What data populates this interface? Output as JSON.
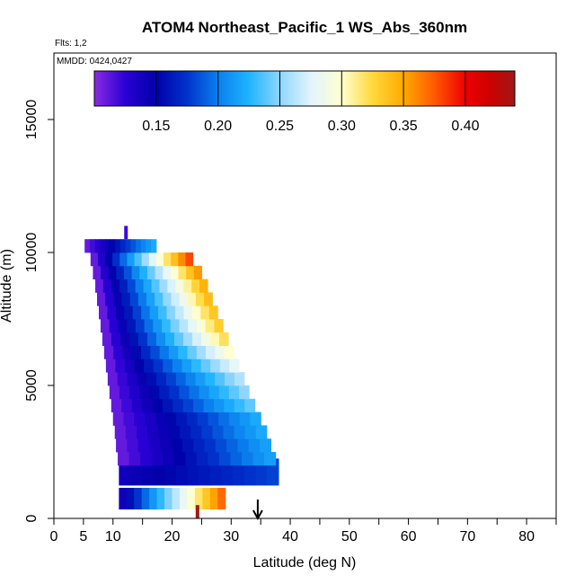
{
  "chart_data": {
    "type": "heatmap",
    "title": "ATOM4 Northeast_Pacific_1 WS_Abs_360nm",
    "flights_label": "Flts: 1,2",
    "dates_label": "MMDD: 0424,0427",
    "xlabel": "Latitude (deg N)",
    "ylabel": "Altitude (m)",
    "xlim": [
      0,
      85
    ],
    "ylim": [
      0,
      17500
    ],
    "x_ticks": [
      0,
      5,
      10,
      20,
      30,
      40,
      50,
      60,
      70,
      80
    ],
    "x_minor_ticks": [
      15,
      25,
      35,
      45,
      55,
      65,
      75,
      85
    ],
    "y_ticks": [
      0,
      5000,
      10000,
      15000
    ],
    "colorbar": {
      "min": 0.1,
      "max": 0.44,
      "ticks": [
        0.15,
        0.2,
        0.25,
        0.3,
        0.35,
        0.4
      ],
      "tick_labels": [
        "0.15",
        "0.20",
        "0.25",
        "0.30",
        "0.35",
        "0.40"
      ],
      "stops": [
        {
          "v": 0.1,
          "c": "#8a2be2"
        },
        {
          "v": 0.125,
          "c": "#2a00d5"
        },
        {
          "v": 0.15,
          "c": "#0000aa"
        },
        {
          "v": 0.175,
          "c": "#0033cc"
        },
        {
          "v": 0.2,
          "c": "#0a7fee"
        },
        {
          "v": 0.225,
          "c": "#1eb4ff"
        },
        {
          "v": 0.25,
          "c": "#8ed6ff"
        },
        {
          "v": 0.275,
          "c": "#e2f4ff"
        },
        {
          "v": 0.3,
          "c": "#ffffd0"
        },
        {
          "v": 0.325,
          "c": "#ffd83c"
        },
        {
          "v": 0.35,
          "c": "#ffaa00"
        },
        {
          "v": 0.375,
          "c": "#ff5a00"
        },
        {
          "v": 0.4,
          "c": "#ee0000"
        },
        {
          "v": 0.42,
          "c": "#cc0000"
        },
        {
          "v": 0.44,
          "c": "#a01818"
        }
      ]
    },
    "bins": [
      {
        "alt": 750,
        "half": 400,
        "lat0": 11.0,
        "lat1": 29.0,
        "vmin": 0.14,
        "vmax": 0.37
      },
      {
        "alt": 1750,
        "half": 500,
        "lat0": 11.0,
        "lat1": 38.0,
        "vmin": 0.14,
        "vmax": 0.18
      },
      {
        "alt": 2250,
        "half": 250,
        "lat0": 10.8,
        "lat1": 37.5,
        "vmin": 0.11,
        "vmax": 0.215
      },
      {
        "alt": 2750,
        "half": 250,
        "lat0": 10.5,
        "lat1": 36.7,
        "vmin": 0.11,
        "vmax": 0.215
      },
      {
        "alt": 3250,
        "half": 250,
        "lat0": 10.3,
        "lat1": 36.0,
        "vmin": 0.11,
        "vmax": 0.22
      },
      {
        "alt": 3750,
        "half": 250,
        "lat0": 10.0,
        "lat1": 35.0,
        "vmin": 0.11,
        "vmax": 0.22
      },
      {
        "alt": 4250,
        "half": 250,
        "lat0": 9.7,
        "lat1": 34.0,
        "vmin": 0.11,
        "vmax": 0.24
      },
      {
        "alt": 4750,
        "half": 250,
        "lat0": 9.4,
        "lat1": 33.0,
        "vmin": 0.11,
        "vmax": 0.25
      },
      {
        "alt": 5250,
        "half": 250,
        "lat0": 9.1,
        "lat1": 32.2,
        "vmin": 0.11,
        "vmax": 0.26
      },
      {
        "alt": 5750,
        "half": 250,
        "lat0": 8.8,
        "lat1": 31.3,
        "vmin": 0.11,
        "vmax": 0.28
      },
      {
        "alt": 6250,
        "half": 250,
        "lat0": 8.5,
        "lat1": 30.4,
        "vmin": 0.11,
        "vmax": 0.3
      },
      {
        "alt": 6750,
        "half": 250,
        "lat0": 8.2,
        "lat1": 29.5,
        "vmin": 0.11,
        "vmax": 0.32
      },
      {
        "alt": 7250,
        "half": 250,
        "lat0": 7.9,
        "lat1": 28.6,
        "vmin": 0.11,
        "vmax": 0.33
      },
      {
        "alt": 7750,
        "half": 250,
        "lat0": 7.6,
        "lat1": 27.7,
        "vmin": 0.11,
        "vmax": 0.335
      },
      {
        "alt": 8250,
        "half": 250,
        "lat0": 7.3,
        "lat1": 26.8,
        "vmin": 0.11,
        "vmax": 0.34
      },
      {
        "alt": 8750,
        "half": 250,
        "lat0": 7.0,
        "lat1": 26.0,
        "vmin": 0.11,
        "vmax": 0.345
      },
      {
        "alt": 9250,
        "half": 250,
        "lat0": 6.6,
        "lat1": 25.0,
        "vmin": 0.11,
        "vmax": 0.355
      },
      {
        "alt": 9750,
        "half": 250,
        "lat0": 6.2,
        "lat1": 23.5,
        "vmin": 0.11,
        "vmax": 0.38
      },
      {
        "alt": 10250,
        "half": 250,
        "lat0": 5.2,
        "lat1": 17.3,
        "vmin": 0.11,
        "vmax": 0.22
      }
    ],
    "markers": [
      {
        "lat": 12.2,
        "alt": 10750,
        "v": 0.12
      },
      {
        "lat": 24.3,
        "alt": 250,
        "v": 0.44
      }
    ],
    "arrow_lat": 34.5
  }
}
